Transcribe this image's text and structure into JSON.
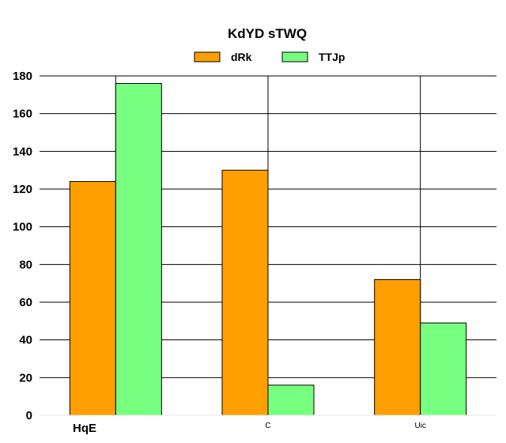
{
  "chart_data": {
    "type": "bar",
    "title": "KdYD sTWQ",
    "categories": [
      "HqE",
      "C",
      "Uic"
    ],
    "series": [
      {
        "name": "dRk",
        "values": [
          124,
          130,
          72
        ],
        "color": "#ff9f00"
      },
      {
        "name": "TTJp",
        "values": [
          176,
          16,
          49
        ],
        "color": "#77ff7f"
      }
    ],
    "ylim": [
      0,
      180
    ],
    "yticks": [
      0,
      20,
      40,
      60,
      80,
      100,
      120,
      140,
      160,
      180
    ],
    "xlabel": "",
    "ylabel": "",
    "grid": true,
    "legend": "top-center"
  }
}
